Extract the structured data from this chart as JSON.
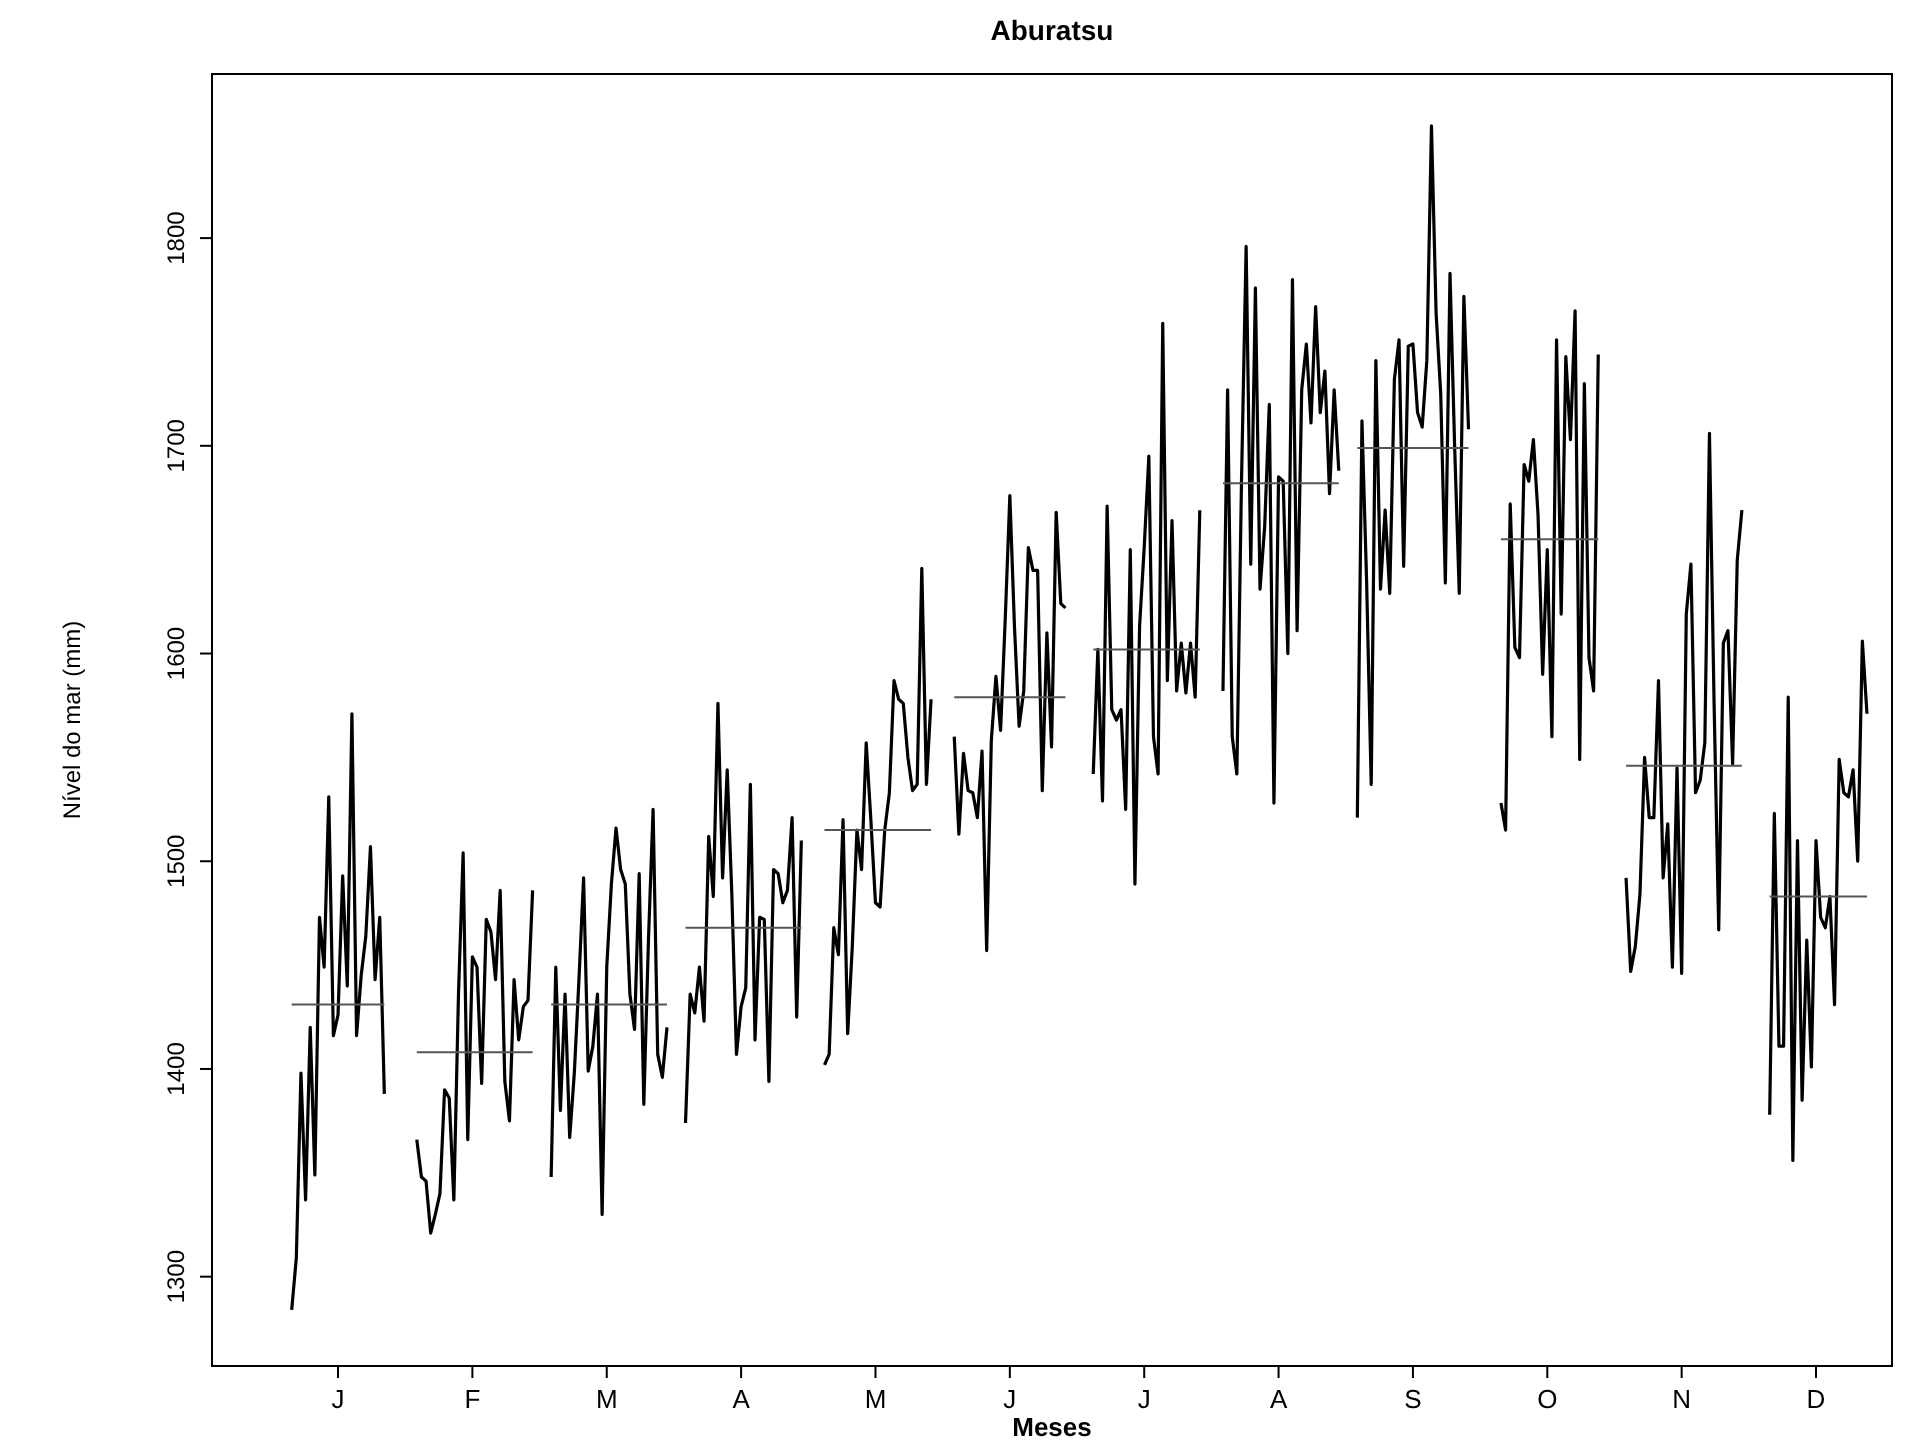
{
  "chart_data": {
    "type": "line",
    "title": "Aburatsu",
    "xlabel": "Meses",
    "ylabel": "Nível do mar (mm)",
    "ylim": [
      1257,
      1879
    ],
    "yticks": [
      1300,
      1400,
      1500,
      1600,
      1700,
      1800
    ],
    "categories": [
      null,
      null,
      null,
      null,
      null,
      null,
      null,
      null,
      null,
      null,
      null,
      null,
      null,
      "J",
      null,
      null,
      null,
      null,
      null,
      null,
      null,
      null,
      null,
      null,
      null,
      null,
      null,
      null,
      null,
      null,
      null,
      null,
      null,
      null,
      null,
      null,
      null,
      null,
      null,
      null,
      null,
      null,
      "F",
      null,
      null,
      null,
      null,
      null,
      null,
      null,
      null,
      null,
      null,
      null,
      null,
      null,
      null,
      null,
      null,
      null,
      null,
      null,
      null,
      null,
      null,
      null,
      null,
      null,
      null,
      null,
      null,
      "M",
      null,
      null,
      null,
      null,
      null,
      null,
      null,
      null,
      null,
      null,
      null,
      null,
      null,
      null,
      null,
      null,
      null,
      null,
      null,
      null,
      null,
      null,
      null,
      null,
      null,
      null,
      null,
      null,
      "A",
      null,
      null,
      null,
      null,
      null,
      null,
      null,
      null,
      null,
      null,
      null,
      null,
      null,
      null,
      null,
      null,
      null,
      null,
      null,
      null,
      null,
      null,
      null,
      null,
      null,
      null,
      null,
      null,
      "M",
      null,
      null,
      null,
      null,
      null,
      null,
      null,
      null,
      null,
      null,
      null,
      null,
      null,
      null,
      null,
      null,
      null,
      null,
      null,
      null,
      null,
      null,
      null,
      null,
      null,
      null,
      null,
      null,
      "J",
      null,
      null,
      null,
      null,
      null,
      null,
      null,
      null,
      null,
      null,
      null,
      null,
      null,
      null,
      null,
      null,
      null,
      null,
      null,
      null,
      null,
      null,
      null,
      null,
      null,
      null,
      null,
      null,
      "J",
      null,
      null,
      null,
      null,
      null,
      null,
      null,
      null,
      null,
      null,
      null,
      null,
      null,
      null,
      null,
      null,
      null,
      null,
      null,
      null,
      null,
      null,
      null,
      null,
      null,
      null,
      null,
      null,
      "A",
      null,
      null,
      null,
      null,
      null,
      null,
      null,
      null,
      null,
      null,
      null,
      null,
      null,
      null,
      null,
      null,
      null,
      null,
      null,
      null,
      null,
      null,
      null,
      null,
      null,
      null,
      null,
      null,
      "S",
      null,
      null,
      null,
      null,
      null,
      null,
      null,
      null,
      null,
      null,
      null,
      null,
      null,
      null,
      null,
      null,
      null,
      null,
      null,
      null,
      null,
      null,
      null,
      null,
      null,
      null,
      null,
      null,
      "O",
      null,
      null,
      null,
      null,
      null,
      null,
      null,
      null,
      null,
      null,
      null,
      null,
      null,
      null,
      null,
      null,
      null,
      null,
      null,
      null,
      null,
      null,
      null,
      null,
      null,
      null,
      null,
      null,
      "N",
      null,
      null,
      null,
      null,
      null,
      null,
      null,
      null,
      null,
      null,
      null,
      null,
      null,
      null,
      null,
      null,
      null,
      null,
      null,
      null,
      null,
      null,
      null,
      null,
      null,
      null,
      null,
      null,
      "D",
      null,
      null,
      null,
      null,
      null,
      null,
      null,
      null,
      null,
      null,
      null,
      null,
      null,
      null,
      null
    ],
    "series": [
      {
        "color": "#000000",
        "values": [
          null,
          null,
          null,
          1284,
          1309,
          1398,
          1337,
          1420,
          1349,
          1473,
          1449,
          1531,
          1416,
          1426,
          1493,
          1440,
          1571,
          1416,
          1445,
          1464,
          1507,
          1443,
          1473,
          1388,
          null,
          null,
          null,
          null,
          null,
          null,
          1366,
          1348,
          1346,
          1321,
          1330,
          1340,
          1390,
          1386,
          1337,
          1436,
          1504,
          1366,
          1454,
          1449,
          1393,
          1472,
          1466,
          1443,
          1486,
          1394,
          1375,
          1443,
          1414,
          1430,
          1433,
          1486,
          null,
          null,
          null,
          1348,
          1449,
          1380,
          1436,
          1367,
          1398,
          1443,
          1492,
          1399,
          1411,
          1436,
          1330,
          1449,
          1489,
          1516,
          1496,
          1489,
          1436,
          1419,
          1494,
          1383,
          1462,
          1525,
          1407,
          1396,
          1420,
          null,
          null,
          null,
          1374,
          1436,
          1427,
          1449,
          1423,
          1512,
          1483,
          1576,
          1492,
          1544,
          1484,
          1407,
          1430,
          1439,
          1537,
          1414,
          1473,
          1472,
          1394,
          1496,
          1494,
          1480,
          1486,
          1521,
          1425,
          1510,
          null,
          null,
          null,
          null,
          1402,
          1407,
          1468,
          1455,
          1520,
          1417,
          1459,
          1515,
          1496,
          1557,
          1520,
          1480,
          1478,
          1515,
          1533,
          1587,
          1578,
          1576,
          1550,
          1534,
          1537,
          1641,
          1537,
          1578,
          null,
          null,
          null,
          null,
          1560,
          1513,
          1552,
          1534,
          1533,
          1521,
          1553,
          1457,
          1558,
          1589,
          1563,
          1616,
          1676,
          1613,
          1565,
          1582,
          1651,
          1640,
          1640,
          1534,
          1610,
          1555,
          1668,
          1624,
          1622,
          null,
          null,
          null,
          null,
          null,
          1542,
          1602,
          1529,
          1671,
          1573,
          1568,
          1573,
          1525,
          1650,
          1489,
          1613,
          1651,
          1695,
          1560,
          1542,
          1759,
          1587,
          1664,
          1582,
          1605,
          1581,
          1605,
          1579,
          1669,
          null,
          null,
          null,
          null,
          1582,
          1727,
          1560,
          1542,
          1683,
          1796,
          1643,
          1776,
          1631,
          1661,
          1720,
          1528,
          1685,
          1683,
          1600,
          1780,
          1611,
          1727,
          1749,
          1711,
          1767,
          1716,
          1736,
          1677,
          1727,
          1688,
          null,
          null,
          null,
          1521,
          1712,
          1635,
          1537,
          1741,
          1631,
          1669,
          1629,
          1732,
          1751,
          1642,
          1748,
          1749,
          1716,
          1709,
          1741,
          1854,
          1764,
          1725,
          1634,
          1783,
          1700,
          1629,
          1772,
          1708,
          null,
          null,
          null,
          null,
          null,
          null,
          1528,
          1515,
          1672,
          1603,
          1598,
          1691,
          1683,
          1703,
          1667,
          1590,
          1650,
          1560,
          1751,
          1619,
          1743,
          1703,
          1765,
          1549,
          1730,
          1598,
          1582,
          1744,
          null,
          null,
          null,
          null,
          null,
          1492,
          1447,
          1459,
          1484,
          1550,
          1521,
          1521,
          1587,
          1492,
          1518,
          1449,
          1545,
          1446,
          1619,
          1643,
          1533,
          1539,
          1557,
          1706,
          1576,
          1467,
          1605,
          1611,
          1547,
          1645,
          1669,
          null,
          null,
          null,
          null,
          null,
          1378,
          1523,
          1411,
          1411,
          1579,
          1356,
          1510,
          1385,
          1462,
          1401,
          1510,
          1473,
          1468,
          1483,
          1431,
          1549,
          1533,
          1531,
          1544,
          1500,
          1606,
          1571,
          null,
          null,
          null,
          null
        ]
      },
      {
        "color": "#555555",
        "values": [
          null,
          null,
          null,
          1431,
          1431,
          1431,
          1431,
          1431,
          1431,
          1431,
          1431,
          1431,
          1431,
          1431,
          1431,
          1431,
          1431,
          1431,
          1431,
          1431,
          1431,
          1431,
          1431,
          1431,
          null,
          null,
          null,
          null,
          null,
          null,
          1408,
          1408,
          1408,
          1408,
          1408,
          1408,
          1408,
          1408,
          1408,
          1408,
          1408,
          1408,
          1408,
          1408,
          1408,
          1408,
          1408,
          1408,
          1408,
          1408,
          1408,
          1408,
          1408,
          1408,
          1408,
          1408,
          null,
          null,
          null,
          1431,
          1431,
          1431,
          1431,
          1431,
          1431,
          1431,
          1431,
          1431,
          1431,
          1431,
          1431,
          1431,
          1431,
          1431,
          1431,
          1431,
          1431,
          1431,
          1431,
          1431,
          1431,
          1431,
          1431,
          1431,
          1431,
          null,
          null,
          null,
          1468,
          1468,
          1468,
          1468,
          1468,
          1468,
          1468,
          1468,
          1468,
          1468,
          1468,
          1468,
          1468,
          1468,
          1468,
          1468,
          1468,
          1468,
          1468,
          1468,
          1468,
          1468,
          1468,
          1468,
          1468,
          1468,
          null,
          null,
          null,
          null,
          1515,
          1515,
          1515,
          1515,
          1515,
          1515,
          1515,
          1515,
          1515,
          1515,
          1515,
          1515,
          1515,
          1515,
          1515,
          1515,
          1515,
          1515,
          1515,
          1515,
          1515,
          1515,
          1515,
          1515,
          null,
          null,
          null,
          null,
          1579,
          1579,
          1579,
          1579,
          1579,
          1579,
          1579,
          1579,
          1579,
          1579,
          1579,
          1579,
          1579,
          1579,
          1579,
          1579,
          1579,
          1579,
          1579,
          1579,
          1579,
          1579,
          1579,
          1579,
          1579,
          null,
          null,
          null,
          null,
          null,
          1602,
          1602,
          1602,
          1602,
          1602,
          1602,
          1602,
          1602,
          1602,
          1602,
          1602,
          1602,
          1602,
          1602,
          1602,
          1602,
          1602,
          1602,
          1602,
          1602,
          1602,
          1602,
          1602,
          1602,
          null,
          null,
          null,
          null,
          1682,
          1682,
          1682,
          1682,
          1682,
          1682,
          1682,
          1682,
          1682,
          1682,
          1682,
          1682,
          1682,
          1682,
          1682,
          1682,
          1682,
          1682,
          1682,
          1682,
          1682,
          1682,
          1682,
          1682,
          1682,
          1682,
          null,
          null,
          null,
          1699,
          1699,
          1699,
          1699,
          1699,
          1699,
          1699,
          1699,
          1699,
          1699,
          1699,
          1699,
          1699,
          1699,
          1699,
          1699,
          1699,
          1699,
          1699,
          1699,
          1699,
          1699,
          1699,
          1699,
          1699,
          null,
          null,
          null,
          null,
          null,
          null,
          1655,
          1655,
          1655,
          1655,
          1655,
          1655,
          1655,
          1655,
          1655,
          1655,
          1655,
          1655,
          1655,
          1655,
          1655,
          1655,
          1655,
          1655,
          1655,
          1655,
          1655,
          1655,
          null,
          null,
          null,
          null,
          null,
          1546,
          1546,
          1546,
          1546,
          1546,
          1546,
          1546,
          1546,
          1546,
          1546,
          1546,
          1546,
          1546,
          1546,
          1546,
          1546,
          1546,
          1546,
          1546,
          1546,
          1546,
          1546,
          1546,
          1546,
          1546,
          1546,
          null,
          null,
          null,
          null,
          null,
          1483,
          1483,
          1483,
          1483,
          1483,
          1483,
          1483,
          1483,
          1483,
          1483,
          1483,
          1483,
          1483,
          1483,
          1483,
          1483,
          1483,
          1483,
          1483,
          1483,
          1483,
          1483,
          null,
          null,
          null,
          null
        ]
      }
    ]
  }
}
